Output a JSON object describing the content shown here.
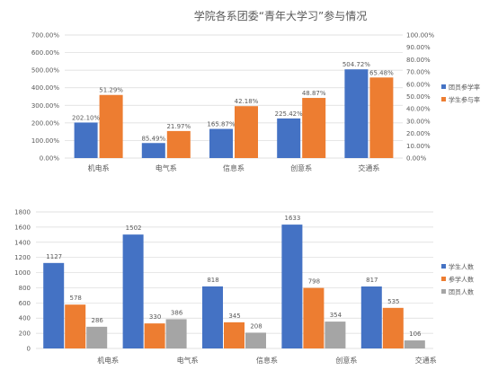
{
  "colors": {
    "blue": "#4472C4",
    "orange": "#ED7D31",
    "gray": "#A5A5A5",
    "grid": "#D9D9D9",
    "text": "#595959"
  },
  "chart_data": [
    {
      "type": "bar",
      "title": "学院各系团委“青年大学习”参与情况",
      "categories": [
        "机电系",
        "电气系",
        "信息系",
        "创意系",
        "交通系"
      ],
      "series": [
        {
          "name": "团员参学率",
          "axis": "left",
          "values": [
            202.1,
            85.49,
            165.87,
            225.42,
            504.72
          ],
          "labels": [
            "202.10%",
            "85.49%",
            "165.87%",
            "225.42%",
            "504.72%"
          ]
        },
        {
          "name": "学生参与率",
          "axis": "right",
          "values": [
            51.29,
            21.97,
            42.18,
            48.87,
            65.48
          ],
          "labels": [
            "51.29%",
            "21.97%",
            "42.18%",
            "48.87%",
            "65.48%"
          ]
        }
      ],
      "y_left": {
        "min": 0,
        "max": 700,
        "step": 100,
        "ticks": [
          "0.00%",
          "100.00%",
          "200.00%",
          "300.00%",
          "400.00%",
          "500.00%",
          "600.00%",
          "700.00%"
        ]
      },
      "y_right": {
        "min": 0,
        "max": 100,
        "step": 10,
        "ticks": [
          "0.00%",
          "10.00%",
          "20.00%",
          "30.00%",
          "40.00%",
          "50.00%",
          "60.00%",
          "70.00%",
          "80.00%",
          "90.00%",
          "100.00%"
        ]
      },
      "grid": true,
      "legend": "right"
    },
    {
      "type": "bar",
      "title": "",
      "categories": [
        "机电系",
        "电气系",
        "信息系",
        "创意系",
        "交通系"
      ],
      "series": [
        {
          "name": "学生人数",
          "values": [
            1127,
            1502,
            818,
            1633,
            817
          ]
        },
        {
          "name": "参学人数",
          "values": [
            578,
            330,
            345,
            798,
            535
          ]
        },
        {
          "name": "团员人数",
          "values": [
            286,
            386,
            208,
            354,
            106
          ]
        }
      ],
      "ylim": [
        0,
        1800
      ],
      "y_ticks": [
        "0",
        "200",
        "400",
        "600",
        "800",
        "1000",
        "1200",
        "1400",
        "1600",
        "1800"
      ],
      "grid": true,
      "legend": "right"
    }
  ]
}
